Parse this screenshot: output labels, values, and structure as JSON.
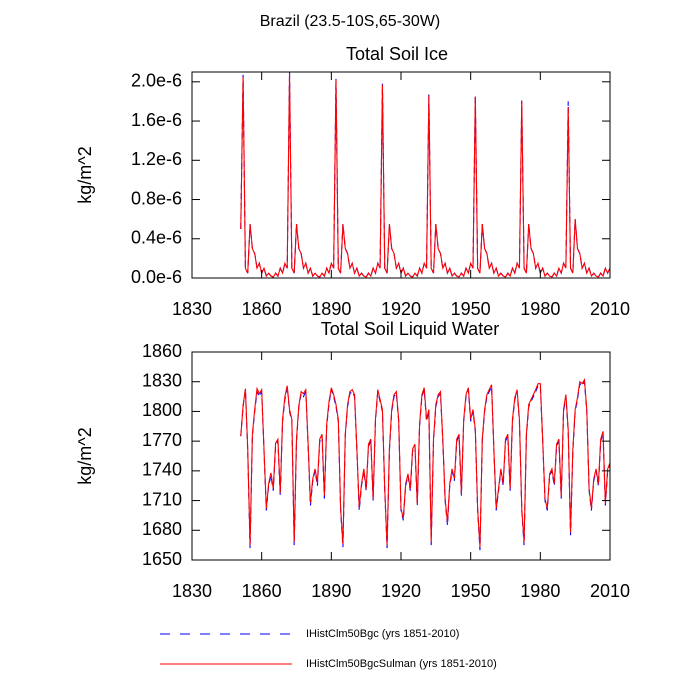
{
  "title": "Brazil (23.5-10S,65-30W)",
  "chart_data": [
    {
      "type": "line",
      "title": "Total Soil Ice",
      "ylabel": "kg/m^2",
      "x": [
        1851,
        1852,
        1853,
        1854,
        1855,
        1856,
        1857,
        1858,
        1859,
        1860,
        1861,
        1862,
        1863,
        1864,
        1865,
        1866,
        1867,
        1868,
        1869,
        1870,
        1871,
        1872,
        1873,
        1874,
        1875,
        1876,
        1877,
        1878,
        1879,
        1880,
        1881,
        1882,
        1883,
        1884,
        1885,
        1886,
        1887,
        1888,
        1889,
        1890,
        1891,
        1892,
        1893,
        1894,
        1895,
        1896,
        1897,
        1898,
        1899,
        1900,
        1901,
        1902,
        1903,
        1904,
        1905,
        1906,
        1907,
        1908,
        1909,
        1910,
        1911,
        1912,
        1913,
        1914,
        1915,
        1916,
        1917,
        1918,
        1919,
        1920,
        1921,
        1922,
        1923,
        1924,
        1925,
        1926,
        1927,
        1928,
        1929,
        1930,
        1931,
        1932,
        1933,
        1934,
        1935,
        1936,
        1937,
        1938,
        1939,
        1940,
        1941,
        1942,
        1943,
        1944,
        1945,
        1946,
        1947,
        1948,
        1949,
        1950,
        1951,
        1952,
        1953,
        1954,
        1955,
        1956,
        1957,
        1958,
        1959,
        1960,
        1961,
        1962,
        1963,
        1964,
        1965,
        1966,
        1967,
        1968,
        1969,
        1970,
        1971,
        1972,
        1973,
        1974,
        1975,
        1976,
        1977,
        1978,
        1979,
        1980,
        1981,
        1982,
        1983,
        1984,
        1985,
        1986,
        1987,
        1988,
        1989,
        1990,
        1991,
        1992,
        1993,
        1994,
        1995,
        1996,
        1997,
        1998,
        1999,
        2000,
        2001,
        2002,
        2003,
        2004,
        2005,
        2006,
        2007,
        2008,
        2009,
        2010
      ],
      "series": [
        {
          "name": "IHistClm50Bgc (yrs 1851-2010)",
          "color": "#0000ff",
          "dashed": true,
          "values": [
            5e-07,
            2.07e-06,
            1e-07,
            5e-08,
            5.5e-07,
            3e-07,
            2.5e-07,
            1e-07,
            1.5e-07,
            5e-08,
            1e-07,
            2e-08,
            5e-08,
            2e-08,
            1e-08,
            5e-08,
            2e-08,
            1e-07,
            5e-08,
            1.5e-07,
            1e-07,
            2.1e-06,
            1e-07,
            5e-08,
            5.5e-07,
            3e-07,
            2.5e-07,
            1e-07,
            1.5e-07,
            5e-08,
            1e-07,
            2e-08,
            5e-08,
            2e-08,
            1e-08,
            5e-08,
            2e-08,
            1e-07,
            5e-08,
            1.5e-07,
            1e-07,
            2.03e-06,
            1e-07,
            5e-08,
            5.5e-07,
            3e-07,
            2.5e-07,
            1e-07,
            1.5e-07,
            5e-08,
            1e-07,
            2e-08,
            5e-08,
            2e-08,
            1e-08,
            5e-08,
            2e-08,
            1e-07,
            5e-08,
            1.5e-07,
            1e-07,
            1.98e-06,
            1e-07,
            5e-08,
            5.5e-07,
            3e-07,
            2.5e-07,
            1e-07,
            1.5e-07,
            5e-08,
            1e-07,
            2e-08,
            5e-08,
            2e-08,
            1e-08,
            5e-08,
            2e-08,
            1e-07,
            5e-08,
            1.5e-07,
            1e-07,
            1.87e-06,
            1e-07,
            5e-08,
            5.5e-07,
            3e-07,
            2.5e-07,
            1e-07,
            1.5e-07,
            5e-08,
            1e-07,
            2e-08,
            5e-08,
            2e-08,
            1e-08,
            5e-08,
            2e-08,
            1e-07,
            5e-08,
            1.5e-07,
            1e-07,
            1.86e-06,
            1e-07,
            5e-08,
            5.5e-07,
            3e-07,
            2.5e-07,
            1e-07,
            1.5e-07,
            5e-08,
            1e-07,
            2e-08,
            5e-08,
            2e-08,
            1e-08,
            5e-08,
            2e-08,
            1e-07,
            5e-08,
            1.5e-07,
            1e-07,
            1.81e-06,
            1e-07,
            5e-08,
            5.5e-07,
            3e-07,
            2.5e-07,
            1e-07,
            1.5e-07,
            5e-08,
            1e-07,
            2e-08,
            5e-08,
            2e-08,
            1e-08,
            5e-08,
            2e-08,
            1e-07,
            5e-08,
            1.5e-07,
            1e-07,
            1.8e-06,
            1e-07,
            5e-08,
            6e-07,
            3e-07,
            2.5e-07,
            1e-07,
            1.5e-07,
            5e-08,
            1e-07,
            2e-08,
            5e-08,
            2e-08,
            1e-08,
            5e-08,
            2e-08,
            1e-07,
            5e-08,
            1e-07
          ]
        },
        {
          "name": "IHistClm50BgcSulman (yrs 1851-2010)",
          "color": "#ff0000",
          "dashed": false,
          "values": [
            5e-07,
            2.05e-06,
            1e-07,
            5e-08,
            5.5e-07,
            3e-07,
            2.5e-07,
            1e-07,
            1.5e-07,
            5e-08,
            1e-07,
            2e-08,
            5e-08,
            2e-08,
            1e-08,
            5e-08,
            2e-08,
            1e-07,
            5e-08,
            1.5e-07,
            1e-07,
            2.08e-06,
            1e-07,
            5e-08,
            5.5e-07,
            3e-07,
            2.5e-07,
            1e-07,
            1.5e-07,
            5e-08,
            1e-07,
            2e-08,
            5e-08,
            2e-08,
            1e-08,
            5e-08,
            2e-08,
            1e-07,
            5e-08,
            1.5e-07,
            1e-07,
            2.02e-06,
            1e-07,
            5e-08,
            5.5e-07,
            3e-07,
            2.5e-07,
            1e-07,
            1.5e-07,
            5e-08,
            1e-07,
            2e-08,
            5e-08,
            2e-08,
            1e-08,
            5e-08,
            2e-08,
            1e-07,
            5e-08,
            1.5e-07,
            1e-07,
            1.97e-06,
            1e-07,
            5e-08,
            5.5e-07,
            3e-07,
            2.5e-07,
            1e-07,
            1.5e-07,
            5e-08,
            1e-07,
            2e-08,
            5e-08,
            2e-08,
            1e-08,
            5e-08,
            2e-08,
            1e-07,
            5e-08,
            1.5e-07,
            1e-07,
            1.86e-06,
            1e-07,
            5e-08,
            5.5e-07,
            3e-07,
            2.5e-07,
            1e-07,
            1.5e-07,
            5e-08,
            1e-07,
            2e-08,
            5e-08,
            2e-08,
            1e-08,
            5e-08,
            2e-08,
            1e-07,
            5e-08,
            1.5e-07,
            1e-07,
            1.85e-06,
            1e-07,
            5e-08,
            5.5e-07,
            3e-07,
            2.5e-07,
            1e-07,
            1.5e-07,
            5e-08,
            1e-07,
            2e-08,
            5e-08,
            2e-08,
            1e-08,
            5e-08,
            2e-08,
            1e-07,
            5e-08,
            1.5e-07,
            1e-07,
            1.8e-06,
            1e-07,
            5e-08,
            5.5e-07,
            3e-07,
            2.5e-07,
            1e-07,
            1.5e-07,
            5e-08,
            1e-07,
            2e-08,
            5e-08,
            2e-08,
            1e-08,
            5e-08,
            2e-08,
            1e-07,
            5e-08,
            1.5e-07,
            1e-07,
            1.74e-06,
            1e-07,
            5e-08,
            6e-07,
            3e-07,
            2.5e-07,
            1e-07,
            1.5e-07,
            5e-08,
            1e-07,
            2e-08,
            5e-08,
            2e-08,
            1e-08,
            5e-08,
            2e-08,
            1e-07,
            5e-08,
            1e-07
          ]
        }
      ],
      "xlim": [
        1830,
        2010
      ],
      "xticks": [
        1830,
        1860,
        1890,
        1920,
        1950,
        1980,
        2010
      ],
      "ylim": [
        0,
        2.1e-06
      ],
      "yticks": [
        {
          "value": 0,
          "label": "0.0e-6"
        },
        {
          "value": 4e-07,
          "label": "0.4e-6"
        },
        {
          "value": 8e-07,
          "label": "0.8e-6"
        },
        {
          "value": 1.2e-06,
          "label": "1.2e-6"
        },
        {
          "value": 1.6e-06,
          "label": "1.6e-6"
        },
        {
          "value": 2e-06,
          "label": "2.0e-6"
        }
      ]
    },
    {
      "type": "line",
      "title": "Total Soil Liquid Water",
      "ylabel": "kg/m^2",
      "x": [
        1851,
        1852,
        1853,
        1854,
        1855,
        1856,
        1857,
        1858,
        1859,
        1860,
        1861,
        1862,
        1863,
        1864,
        1865,
        1866,
        1867,
        1868,
        1869,
        1870,
        1871,
        1872,
        1873,
        1874,
        1875,
        1876,
        1877,
        1878,
        1879,
        1880,
        1881,
        1882,
        1883,
        1884,
        1885,
        1886,
        1887,
        1888,
        1889,
        1890,
        1891,
        1892,
        1893,
        1894,
        1895,
        1896,
        1897,
        1898,
        1899,
        1900,
        1901,
        1902,
        1903,
        1904,
        1905,
        1906,
        1907,
        1908,
        1909,
        1910,
        1911,
        1912,
        1913,
        1914,
        1915,
        1916,
        1917,
        1918,
        1919,
        1920,
        1921,
        1922,
        1923,
        1924,
        1925,
        1926,
        1927,
        1928,
        1929,
        1930,
        1931,
        1932,
        1933,
        1934,
        1935,
        1936,
        1937,
        1938,
        1939,
        1940,
        1941,
        1942,
        1943,
        1944,
        1945,
        1946,
        1947,
        1948,
        1949,
        1950,
        1951,
        1952,
        1953,
        1954,
        1955,
        1956,
        1957,
        1958,
        1959,
        1960,
        1961,
        1962,
        1963,
        1964,
        1965,
        1966,
        1967,
        1968,
        1969,
        1970,
        1971,
        1972,
        1973,
        1974,
        1975,
        1976,
        1977,
        1978,
        1979,
        1980,
        1981,
        1982,
        1983,
        1984,
        1985,
        1986,
        1987,
        1988,
        1989,
        1990,
        1991,
        1992,
        1993,
        1994,
        1995,
        1996,
        1997,
        1998,
        1999,
        2000,
        2001,
        2002,
        2003,
        2004,
        2005,
        2006,
        2007,
        2008,
        2009,
        2010
      ],
      "series": [
        {
          "name": "IHistClm50Bgc (yrs 1851-2010)",
          "color": "#0000ff",
          "dashed": true,
          "values": [
            1775,
            1805,
            1822,
            1760,
            1662,
            1775,
            1800,
            1820,
            1815,
            1820,
            1760,
            1700,
            1725,
            1735,
            1720,
            1765,
            1770,
            1715,
            1790,
            1812,
            1825,
            1800,
            1790,
            1665,
            1770,
            1805,
            1818,
            1815,
            1820,
            1765,
            1705,
            1730,
            1740,
            1725,
            1770,
            1775,
            1712,
            1785,
            1808,
            1822,
            1815,
            1805,
            1790,
            1700,
            1663,
            1775,
            1805,
            1818,
            1820,
            1815,
            1760,
            1700,
            1725,
            1740,
            1720,
            1765,
            1770,
            1710,
            1790,
            1820,
            1810,
            1800,
            1720,
            1662,
            1760,
            1800,
            1815,
            1818,
            1790,
            1700,
            1690,
            1725,
            1735,
            1720,
            1760,
            1765,
            1705,
            1785,
            1815,
            1822,
            1790,
            1800,
            1665,
            1770,
            1805,
            1815,
            1818,
            1770,
            1710,
            1685,
            1725,
            1740,
            1730,
            1770,
            1775,
            1715,
            1790,
            1815,
            1822,
            1790,
            1800,
            1780,
            1700,
            1660,
            1770,
            1800,
            1815,
            1820,
            1825,
            1760,
            1700,
            1720,
            1740,
            1725,
            1770,
            1775,
            1720,
            1790,
            1812,
            1820,
            1790,
            1700,
            1665,
            1775,
            1805,
            1810,
            1815,
            1820,
            1826,
            1826,
            1770,
            1710,
            1700,
            1735,
            1740,
            1725,
            1765,
            1770,
            1712,
            1800,
            1815,
            1780,
            1675,
            1760,
            1800,
            1812,
            1828,
            1826,
            1830,
            1800,
            1720,
            1700,
            1730,
            1740,
            1725,
            1770,
            1778,
            1705,
            1740,
            1745
          ]
        },
        {
          "name": "IHistClm50BgcSulman (yrs 1851-2010)",
          "color": "#ff0000",
          "dashed": false,
          "values": [
            1775,
            1806,
            1823,
            1762,
            1665,
            1777,
            1802,
            1823,
            1818,
            1822,
            1762,
            1702,
            1727,
            1738,
            1722,
            1768,
            1772,
            1718,
            1792,
            1815,
            1826,
            1802,
            1792,
            1668,
            1772,
            1806,
            1820,
            1818,
            1822,
            1768,
            1708,
            1732,
            1742,
            1728,
            1772,
            1777,
            1715,
            1787,
            1810,
            1824,
            1817,
            1807,
            1792,
            1702,
            1666,
            1777,
            1807,
            1820,
            1822,
            1817,
            1762,
            1703,
            1727,
            1742,
            1722,
            1767,
            1772,
            1712,
            1792,
            1822,
            1812,
            1802,
            1722,
            1665,
            1762,
            1802,
            1817,
            1820,
            1792,
            1702,
            1692,
            1727,
            1737,
            1722,
            1762,
            1767,
            1707,
            1787,
            1817,
            1824,
            1792,
            1802,
            1668,
            1772,
            1807,
            1817,
            1820,
            1772,
            1712,
            1688,
            1727,
            1742,
            1732,
            1772,
            1777,
            1717,
            1792,
            1817,
            1824,
            1792,
            1802,
            1782,
            1702,
            1663,
            1772,
            1802,
            1817,
            1822,
            1827,
            1762,
            1702,
            1722,
            1742,
            1727,
            1772,
            1777,
            1722,
            1792,
            1814,
            1822,
            1792,
            1702,
            1668,
            1777,
            1807,
            1812,
            1817,
            1822,
            1828,
            1828,
            1772,
            1712,
            1702,
            1737,
            1742,
            1727,
            1767,
            1772,
            1714,
            1802,
            1817,
            1782,
            1678,
            1762,
            1802,
            1814,
            1830,
            1828,
            1832,
            1802,
            1722,
            1702,
            1732,
            1742,
            1727,
            1772,
            1780,
            1707,
            1742,
            1748
          ]
        }
      ],
      "xlim": [
        1830,
        2010
      ],
      "xticks": [
        1830,
        1860,
        1890,
        1920,
        1950,
        1980,
        2010
      ],
      "ylim": [
        1650,
        1860
      ],
      "yticks": [
        1650,
        1680,
        1710,
        1740,
        1770,
        1800,
        1830,
        1860
      ]
    }
  ]
}
